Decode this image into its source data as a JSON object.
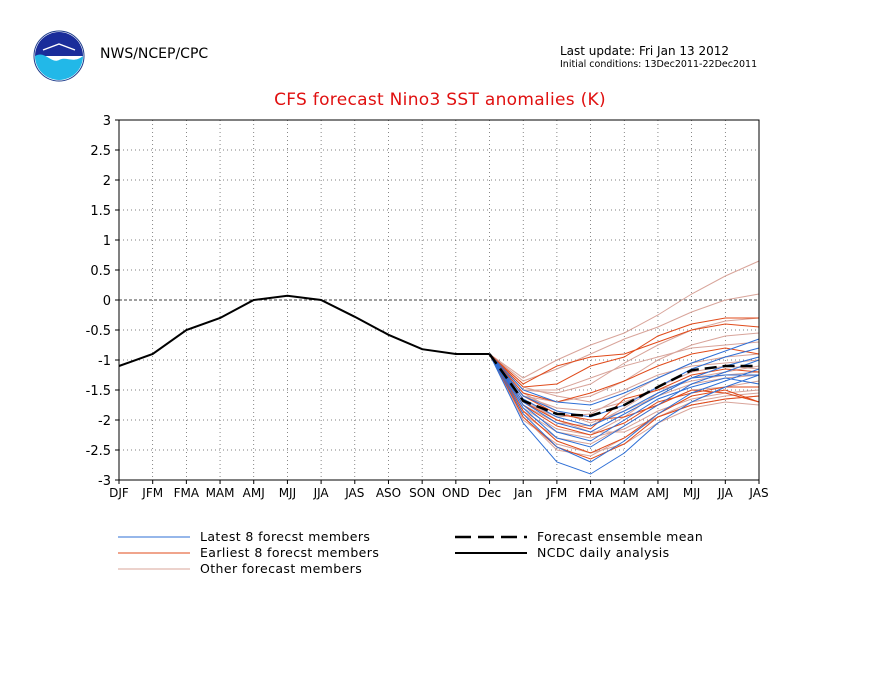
{
  "header": {
    "agency": "NWS/NCEP/CPC",
    "last_update": "Last update: Fri Jan 13 2012",
    "initial_conditions": "Initial conditions: 13Dec2011-22Dec2011"
  },
  "colors": {
    "title": "#e01010",
    "latest": "#2e6fd6",
    "earliest": "#e04a1a",
    "other": "#d8a49a",
    "analysis": "#000000",
    "mean": "#000000"
  },
  "chart_data": {
    "type": "line",
    "title": "CFS forecast Nino3 SST anomalies (K)",
    "xlabel": "",
    "ylabel": "",
    "categories": [
      "DJF",
      "JFM",
      "FMA",
      "MAM",
      "AMJ",
      "MJJ",
      "JJA",
      "JAS",
      "ASO",
      "SON",
      "OND",
      "Dec",
      "Jan",
      "JFM",
      "FMA",
      "MAM",
      "AMJ",
      "MJJ",
      "JJA",
      "JAS"
    ],
    "ylim": [
      -3,
      3
    ],
    "yticks": [
      "3",
      "2.5",
      "2",
      "1.5",
      "1",
      "0.5",
      "0",
      "-0.5",
      "-1",
      "-1.5",
      "-2",
      "-2.5",
      "-3"
    ],
    "grid": true,
    "zero_line": true,
    "analysis": {
      "name": "NCDC daily analysis",
      "x_index": [
        0,
        1,
        2,
        3,
        4,
        5,
        6,
        7,
        8,
        9,
        10,
        11
      ],
      "values": [
        -1.1,
        -0.9,
        -0.5,
        -0.3,
        0.0,
        0.07,
        0.0,
        -0.28,
        -0.58,
        -0.82,
        -0.9,
        -0.9
      ]
    },
    "ensemble_mean": {
      "name": "Forecast ensemble mean",
      "x_index": [
        11,
        12,
        13,
        14,
        15,
        16,
        17,
        18,
        19
      ],
      "values": [
        -0.9,
        -1.68,
        -1.9,
        -1.93,
        -1.75,
        -1.45,
        -1.17,
        -1.1,
        -1.1
      ]
    },
    "members": {
      "x_index": [
        11,
        12,
        13,
        14,
        15,
        16,
        17,
        18,
        19
      ],
      "latest": {
        "name": "Latest 8 forecst members",
        "series": [
          [
            -0.9,
            -2.05,
            -2.7,
            -2.9,
            -2.55,
            -2.05,
            -1.7,
            -1.45,
            -1.25
          ],
          [
            -0.9,
            -1.9,
            -2.45,
            -2.7,
            -2.35,
            -1.9,
            -1.55,
            -1.35,
            -1.15
          ],
          [
            -0.9,
            -1.8,
            -2.3,
            -2.45,
            -2.1,
            -1.75,
            -1.4,
            -1.2,
            -1.0
          ],
          [
            -0.9,
            -1.7,
            -2.05,
            -2.2,
            -1.9,
            -1.6,
            -1.3,
            -1.1,
            -0.95
          ],
          [
            -0.9,
            -1.6,
            -1.85,
            -1.95,
            -1.75,
            -1.45,
            -1.15,
            -0.95,
            -0.8
          ],
          [
            -0.9,
            -1.5,
            -1.7,
            -1.75,
            -1.55,
            -1.3,
            -1.05,
            -0.85,
            -0.65
          ],
          [
            -0.9,
            -1.75,
            -2.2,
            -2.35,
            -2.0,
            -1.65,
            -1.45,
            -1.3,
            -1.4
          ],
          [
            -0.9,
            -1.65,
            -1.95,
            -2.1,
            -1.85,
            -1.55,
            -1.3,
            -1.25,
            -1.25
          ]
        ]
      },
      "earliest": {
        "name": "Earliest 8 forecst members",
        "series": [
          [
            -0.9,
            -1.4,
            -1.1,
            -0.95,
            -0.9,
            -0.7,
            -0.5,
            -0.4,
            -0.45
          ],
          [
            -0.9,
            -1.45,
            -1.4,
            -1.1,
            -0.95,
            -0.6,
            -0.4,
            -0.3,
            -0.3
          ],
          [
            -0.9,
            -1.55,
            -1.7,
            -1.55,
            -1.35,
            -1.1,
            -0.9,
            -0.8,
            -0.9
          ],
          [
            -0.9,
            -1.75,
            -2.1,
            -2.25,
            -2.05,
            -1.7,
            -1.55,
            -1.45,
            -1.45
          ],
          [
            -0.9,
            -1.85,
            -2.35,
            -2.55,
            -2.3,
            -1.9,
            -1.6,
            -1.5,
            -1.7
          ],
          [
            -0.9,
            -1.95,
            -2.45,
            -2.65,
            -2.4,
            -1.95,
            -1.75,
            -1.65,
            -1.6
          ],
          [
            -0.9,
            -1.6,
            -1.9,
            -2.0,
            -1.95,
            -1.75,
            -1.5,
            -1.55,
            -1.7
          ],
          [
            -0.9,
            -1.7,
            -2.0,
            -2.15,
            -1.65,
            -1.5,
            -1.25,
            -1.15,
            -1.2
          ]
        ]
      },
      "other": {
        "name": "Other forecast members",
        "series": [
          [
            -0.9,
            -1.3,
            -1.0,
            -0.75,
            -0.55,
            -0.25,
            0.1,
            0.4,
            0.65
          ],
          [
            -0.9,
            -1.35,
            -1.15,
            -0.9,
            -0.65,
            -0.45,
            -0.2,
            0.0,
            0.1
          ],
          [
            -0.9,
            -1.5,
            -1.55,
            -1.4,
            -1.05,
            -0.75,
            -0.5,
            -0.35,
            -0.3
          ],
          [
            -0.9,
            -1.6,
            -1.7,
            -1.6,
            -1.35,
            -1.0,
            -0.75,
            -0.6,
            -0.55
          ],
          [
            -0.9,
            -1.7,
            -1.95,
            -1.9,
            -1.6,
            -1.3,
            -1.05,
            -0.95,
            -0.9
          ],
          [
            -0.9,
            -1.8,
            -2.15,
            -2.25,
            -1.95,
            -1.55,
            -1.3,
            -1.2,
            -1.1
          ],
          [
            -0.9,
            -1.9,
            -2.3,
            -2.4,
            -2.1,
            -1.75,
            -1.5,
            -1.45,
            -1.35
          ],
          [
            -0.9,
            -2.0,
            -2.4,
            -2.55,
            -2.4,
            -2.05,
            -1.8,
            -1.7,
            -1.75
          ],
          [
            -0.9,
            -1.65,
            -2.0,
            -2.2,
            -2.2,
            -1.95,
            -1.7,
            -1.6,
            -1.55
          ],
          [
            -0.9,
            -1.55,
            -1.85,
            -2.05,
            -1.85,
            -1.6,
            -1.4,
            -1.3,
            -1.25
          ],
          [
            -0.9,
            -1.45,
            -1.6,
            -1.7,
            -1.5,
            -1.25,
            -1.1,
            -1.05,
            -1.0
          ],
          [
            -0.9,
            -1.75,
            -2.05,
            -2.1,
            -1.8,
            -1.45,
            -1.2,
            -1.1,
            -1.15
          ],
          [
            -0.9,
            -1.85,
            -2.2,
            -2.3,
            -2.15,
            -1.85,
            -1.65,
            -1.55,
            -1.5
          ],
          [
            -0.9,
            -1.6,
            -1.8,
            -1.85,
            -1.7,
            -1.5,
            -1.35,
            -1.25,
            -1.2
          ],
          [
            -0.9,
            -1.95,
            -2.5,
            -2.6,
            -2.3,
            -1.95,
            -1.75,
            -1.65,
            -1.6
          ],
          [
            -0.9,
            -1.5,
            -1.5,
            -1.3,
            -1.1,
            -0.95,
            -0.8,
            -0.75,
            -0.7
          ]
        ]
      }
    },
    "legend": [
      "Latest 8 forecst members",
      "Earliest 8 forecst members",
      "Other forecast members",
      "Forecast ensemble mean",
      "NCDC daily analysis"
    ],
    "legend_placement": "bottom"
  }
}
